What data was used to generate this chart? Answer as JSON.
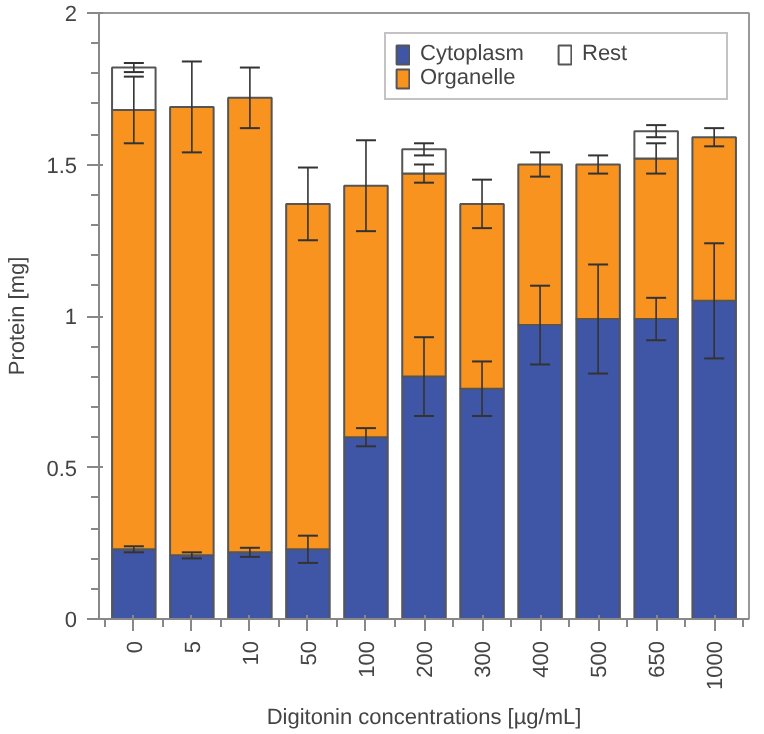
{
  "chart_data": {
    "type": "bar",
    "stacked": true,
    "xlabel": "Digitonin concentrations [µg/mL]",
    "ylabel": "Protein [mg]",
    "categories": [
      "0",
      "5",
      "10",
      "50",
      "100",
      "200",
      "300",
      "400",
      "500",
      "650",
      "1000"
    ],
    "series": [
      {
        "name": "Cytoplasm",
        "color": "#3f56a6",
        "values": [
          0.23,
          0.21,
          0.22,
          0.23,
          0.6,
          0.8,
          0.76,
          0.97,
          0.99,
          0.99,
          1.05
        ],
        "errors": [
          0.01,
          0.01,
          0.015,
          0.045,
          0.03,
          0.13,
          0.09,
          0.13,
          0.18,
          0.07,
          0.19
        ]
      },
      {
        "name": "Organelle",
        "color": "#f7931e",
        "values": [
          1.45,
          1.48,
          1.5,
          1.14,
          0.83,
          0.67,
          0.61,
          0.53,
          0.51,
          0.53,
          0.54
        ],
        "errors": [
          0.11,
          0.15,
          0.1,
          0.12,
          0.15,
          0.03,
          0.08,
          0.04,
          0.03,
          0.05,
          0.03
        ]
      },
      {
        "name": "Rest",
        "color": "#ffffff",
        "values": [
          0.14,
          null,
          null,
          null,
          null,
          0.08,
          null,
          null,
          null,
          0.09,
          null
        ],
        "errors": [
          0.015,
          null,
          null,
          null,
          null,
          0.02,
          null,
          null,
          null,
          0.02,
          null
        ]
      }
    ],
    "ylim": [
      0,
      2
    ],
    "yticks": [
      0,
      {
        "value": 0.5,
        "label": "0.5"
      },
      1,
      {
        "value": 1.5,
        "label": "1.5"
      },
      2
    ],
    "grid": false,
    "legend": "top right"
  }
}
